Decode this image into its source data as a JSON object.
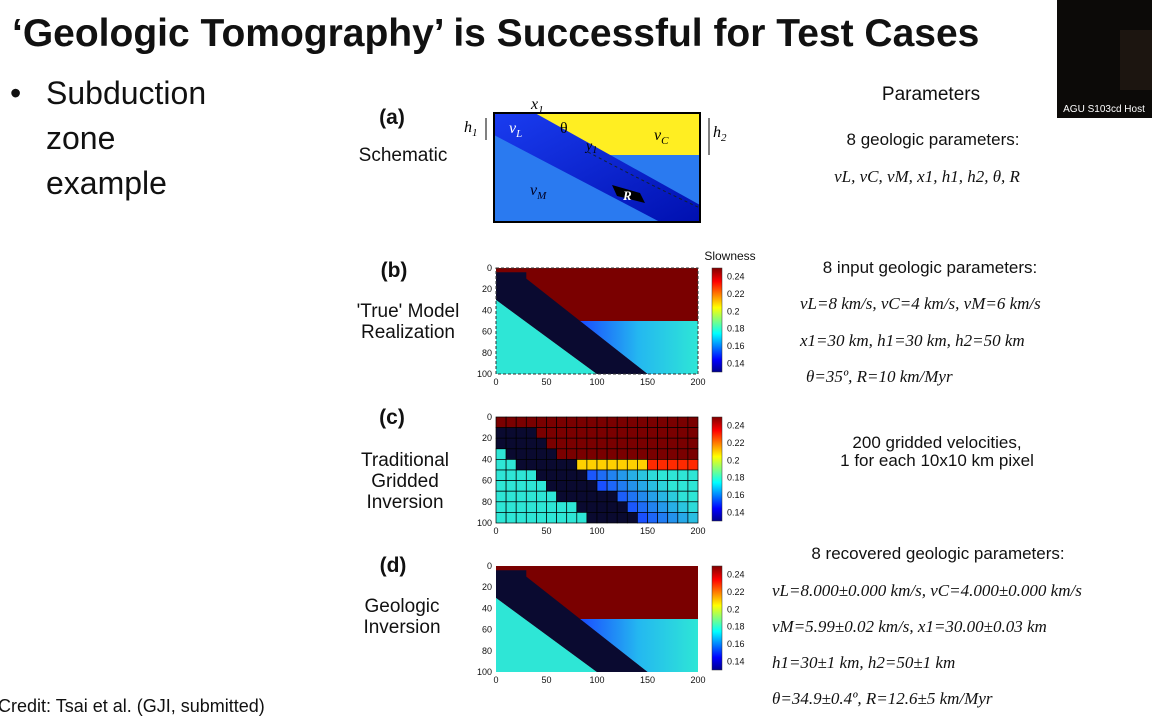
{
  "title": "‘Geologic Tomography’ is Successful for Test Cases",
  "bullet": {
    "symbol": "•",
    "lines": [
      "Subduction",
      "zone",
      "example"
    ]
  },
  "credit": "Credit: Tsai et al. (GJI, submitted)",
  "video_tile": {
    "label": "AGU S103cd Host"
  },
  "parameters_header": "Parameters",
  "panels": [
    {
      "letter": "(a)",
      "label_lines": [
        "Schematic"
      ],
      "schematic_labels": [
        {
          "base": "x",
          "sub": "1"
        },
        {
          "base": "h",
          "sub": "1"
        },
        {
          "base": "v",
          "sub": "L"
        },
        {
          "base": "θ"
        },
        {
          "base": "y",
          "sub": "1"
        },
        {
          "base": "v",
          "sub": "C"
        },
        {
          "base": "h",
          "sub": "2"
        },
        {
          "base": "v",
          "sub": "M"
        },
        {
          "base": "R"
        }
      ],
      "params_title": "8 geologic parameters:",
      "params_lines": [
        "vL, vC, vM, x1, h1, h2, θ, R"
      ]
    },
    {
      "letter": "(b)",
      "label_lines": [
        "'True' Model",
        "Realization"
      ],
      "colorbar_label": "Slowness",
      "yticks": [
        0,
        20,
        40,
        60,
        80,
        100
      ],
      "xticks": [
        0,
        50,
        100,
        150,
        200
      ],
      "colorbar_ticks": [
        0.24,
        0.22,
        0.2,
        0.18,
        0.16,
        0.14
      ],
      "params_title": "8 input geologic parameters:",
      "params_lines": [
        "vL=8 km/s, vC=4 km/s, vM=6 km/s",
        "x1=30 km, h1=30 km, h2=50 km",
        "θ=35º, R=10 km/Myr"
      ]
    },
    {
      "letter": "(c)",
      "label_lines": [
        "Traditional",
        "Gridded",
        "Inversion"
      ],
      "yticks": [
        0,
        20,
        40,
        60,
        80,
        100
      ],
      "xticks": [
        0,
        50,
        100,
        150,
        200
      ],
      "colorbar_ticks": [
        0.24,
        0.22,
        0.2,
        0.18,
        0.16,
        0.14
      ],
      "params_lines": [
        "200 gridded velocities,",
        "1 for each 10x10 km pixel"
      ]
    },
    {
      "letter": "(d)",
      "label_lines": [
        "Geologic",
        "Inversion"
      ],
      "yticks": [
        0,
        20,
        40,
        60,
        80,
        100
      ],
      "xticks": [
        0,
        50,
        100,
        150,
        200
      ],
      "colorbar_ticks": [
        0.24,
        0.22,
        0.2,
        0.18,
        0.16,
        0.14
      ],
      "params_title": "8 recovered geologic parameters:",
      "params_lines": [
        "vL=8.000±0.000 km/s, vC=4.000±0.000 km/s",
        "vM=5.99±0.02 km/s, x1=30.00±0.03 km",
        "h1=30±1 km, h2=50±1 km",
        "θ=34.9±0.4º, R=12.6±5 km/Myr"
      ]
    }
  ]
}
